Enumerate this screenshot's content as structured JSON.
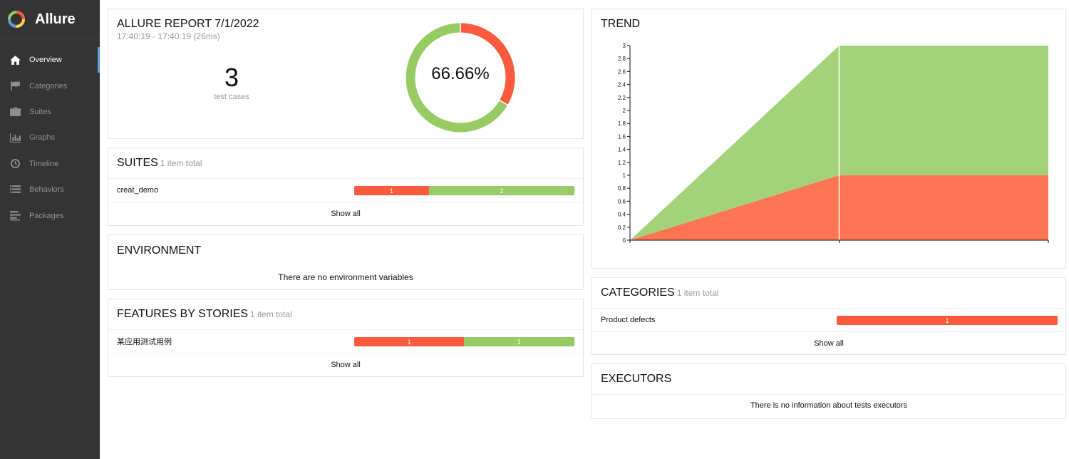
{
  "app": {
    "name": "Allure"
  },
  "nav": [
    {
      "label": "Overview",
      "icon": "home-icon",
      "active": true
    },
    {
      "label": "Categories",
      "icon": "flag-icon"
    },
    {
      "label": "Suites",
      "icon": "briefcase-icon"
    },
    {
      "label": "Graphs",
      "icon": "bar-chart-icon"
    },
    {
      "label": "Timeline",
      "icon": "clock-icon"
    },
    {
      "label": "Behaviors",
      "icon": "list-icon"
    },
    {
      "label": "Packages",
      "icon": "align-left-icon"
    }
  ],
  "summary": {
    "title": "ALLURE REPORT 7/1/2022",
    "time": "17:40:19 - 17:40:19 (26ms)",
    "test_count": "3",
    "test_label": "test cases",
    "percent": "66.66%",
    "passed_fraction": 0.6666,
    "failed_fraction": 0.3333
  },
  "suites": {
    "title": "SUITES",
    "count": "1 item total",
    "rows": [
      {
        "name": "creat_demo",
        "failed": "1",
        "passed": "2"
      }
    ],
    "show_all": "Show all"
  },
  "environment": {
    "title": "ENVIRONMENT",
    "message": "There are no environment variables"
  },
  "features": {
    "title": "FEATURES BY STORIES",
    "count": "1 item total",
    "rows": [
      {
        "name": "某应用测试用例",
        "failed": "1",
        "passed": "1"
      }
    ],
    "show_all": "Show all"
  },
  "trend": {
    "title": "TREND"
  },
  "categories": {
    "title": "CATEGORIES",
    "count": "1 item total",
    "rows": [
      {
        "name": "Product defects",
        "failed": "1"
      }
    ],
    "show_all": "Show all"
  },
  "executors": {
    "title": "EXECUTORS",
    "message": "There is no information about tests executors"
  },
  "colors": {
    "failed": "#fd5a3e",
    "passed": "#97cc64",
    "trend_failed": "#ff7452",
    "trend_passed": "#a4d27a"
  },
  "chart_data": {
    "type": "area",
    "title": "TREND",
    "x": [
      0,
      1,
      2
    ],
    "ylim": [
      0,
      3
    ],
    "yticks": [
      "0",
      "0.2",
      "0.4",
      "0.6",
      "0.8",
      "1",
      "1.2",
      "1.4",
      "1.6",
      "1.8",
      "2",
      "2.2",
      "2.4",
      "2.6",
      "2.8",
      "3"
    ],
    "series": [
      {
        "values": [
          0,
          1,
          1
        ],
        "color": "#ff7452"
      },
      {
        "values": [
          0,
          2,
          2
        ],
        "color": "#a4d27a"
      }
    ],
    "stacked": true
  }
}
